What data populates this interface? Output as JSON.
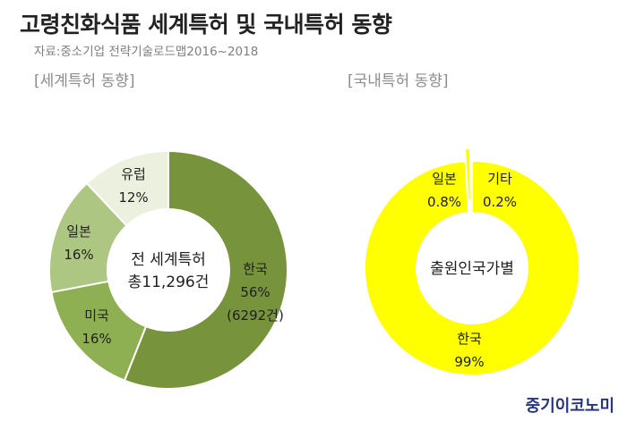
{
  "title": "고령친화식품 세계특허 및 국내특허 동향",
  "source": "자료:중소기업 전략기술로드맵2016~2018",
  "logo": "중기이코노미",
  "chart_data": [
    {
      "type": "pie",
      "subtitle": "[세계특허 동향]",
      "center_label": [
        "전 세계특허",
        "총11,296건"
      ],
      "slices": [
        {
          "label": "한국",
          "value": 56,
          "value_label": "56%",
          "note": "(6292건)",
          "color": "#77933c"
        },
        {
          "label": "미국",
          "value": 16,
          "value_label": "16%",
          "color": "#8fb052"
        },
        {
          "label": "일본",
          "value": 16,
          "value_label": "16%",
          "color": "#adc682"
        },
        {
          "label": "유럽",
          "value": 12,
          "value_label": "12%",
          "color": "#ebf1de"
        }
      ]
    },
    {
      "type": "pie",
      "subtitle": "[국내특허 동향]",
      "center_label": [
        "출원인국가별"
      ],
      "slices": [
        {
          "label": "한국",
          "value": 99,
          "value_label": "99%",
          "color": "#ffff00"
        },
        {
          "label": "일본",
          "value": 0.8,
          "value_label": "0.8%",
          "color": "#ffff00"
        },
        {
          "label": "기타",
          "value": 0.2,
          "value_label": "0.2%",
          "color": "#ffff00"
        }
      ]
    }
  ]
}
